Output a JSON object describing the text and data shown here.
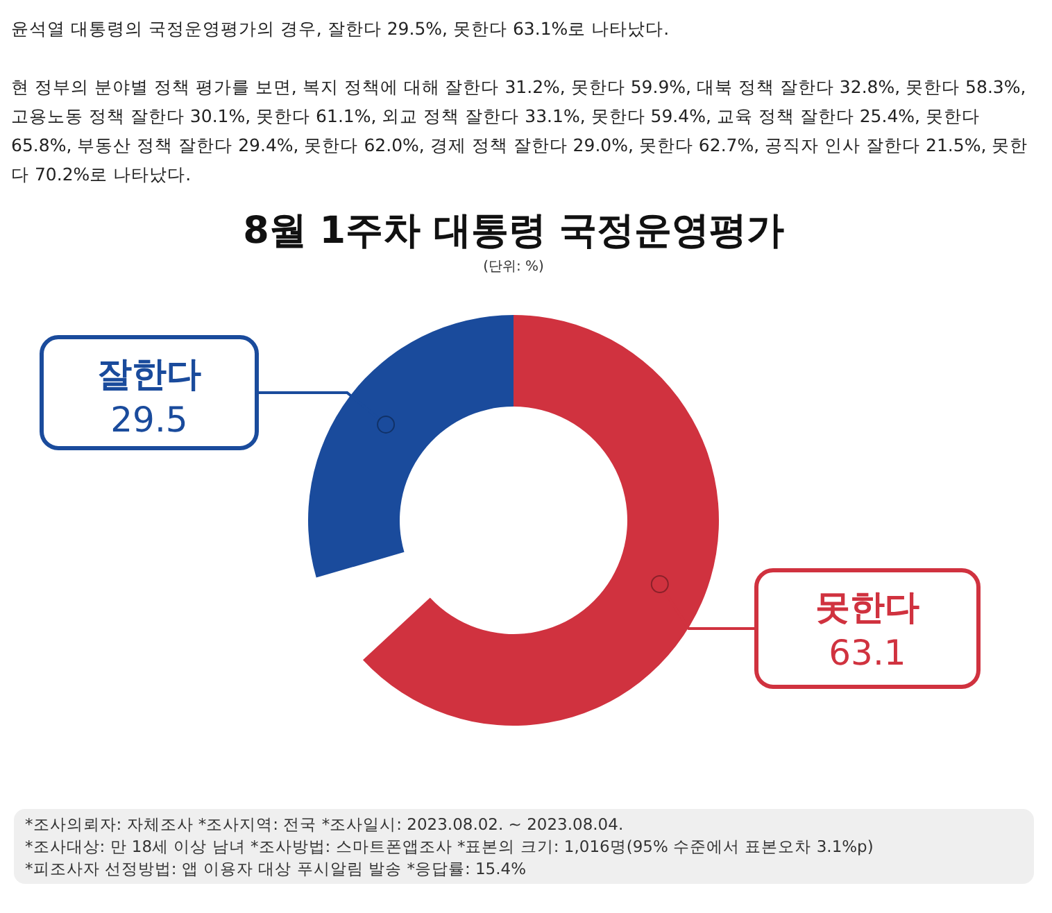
{
  "chart_data": {
    "type": "donut",
    "title": "8월 1주차 대통령 국정운영평가",
    "subtitle": "(단위: %)",
    "categories": [
      "잘한다",
      "못한다"
    ],
    "values": [
      29.5,
      63.1
    ],
    "colors": [
      "#1a4b9c",
      "#d0323f"
    ],
    "data_labels": true,
    "annotations": [
      "윤석열 대통령의 국정운영평가의 경우, 잘한다 29.5%, 못한다 63.1%로 나타났다.",
      "현 정부의 분야별 정책 평가를 보면, 복지 정책에 대해 잘한다 31.2%, 못한다 59.9%, 대북 정책 잘한다 32.8%, 못한다 58.3%, 고용노동 정책 잘한다 30.1%, 못한다 61.1%, 외교 정책 잘한다 33.1%, 못한다 59.4%, 교육 정책 잘한다 25.4%, 못한다 65.8%, 부동산 정책 잘한다 29.4%, 못한다 62.0%, 경제 정책 잘한다 29.0%, 못한다 62.7%, 공직자 인사 잘한다 21.5%, 못한다 70.2%로 나타났다.",
      "*조사의뢰자: 자체조사  *조사지역: 전국  *조사일시: 2023.08.02. ~ 2023.08.04.",
      "*조사대상: 만 18세 이상 남녀  *조사방법: 스마트폰앱조사  *표본의 크기: 1,016명(95% 수준에서 표본오차 3.1%p)",
      "*피조사자 선정방법: 앱 이용자 대상 푸시알림 발송  *응답률: 15.4%"
    ]
  }
}
